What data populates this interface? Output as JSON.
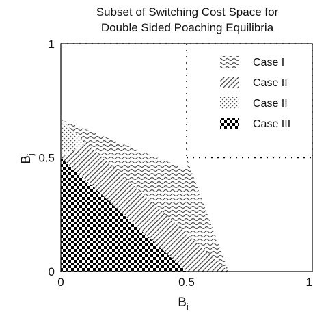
{
  "chart_data": {
    "type": "area",
    "title_lines": [
      "Subset of Switching Cost Space for",
      "Double Sided Poaching Equilibria"
    ],
    "xlabel": {
      "base": "B",
      "sub": "i"
    },
    "ylabel": {
      "base": "B",
      "sub": "j"
    },
    "xlim": [
      0,
      1
    ],
    "ylim": [
      0,
      1
    ],
    "x_ticks": [
      {
        "value": 0,
        "label": "0"
      },
      {
        "value": 0.5,
        "label": "0.5"
      },
      {
        "value": 1,
        "label": "1"
      }
    ],
    "y_ticks": [
      {
        "value": 0,
        "label": "0"
      },
      {
        "value": 0.5,
        "label": "0.5"
      },
      {
        "value": 1,
        "label": "1"
      }
    ],
    "grid": "dotted at 0.5 (upper-right quadrant)",
    "legend_position": "top-right",
    "legend": [
      {
        "label": "Case I",
        "pattern": "wave"
      },
      {
        "label": "Case II",
        "pattern": "hatch"
      },
      {
        "label": "Case II",
        "pattern": "dots"
      },
      {
        "label": "Case III",
        "pattern": "checker"
      }
    ],
    "regions": [
      {
        "name": "Case I",
        "pattern": "wave",
        "polygon": [
          [
            0,
            0.667
          ],
          [
            0.5,
            0.45
          ],
          [
            0.5,
            0.5
          ],
          [
            0.667,
            0
          ],
          [
            0.55,
            0
          ]
        ]
      },
      {
        "name": "Case II",
        "pattern": "hatch",
        "polygon": [
          [
            0,
            0.667
          ],
          [
            0.667,
            0
          ],
          [
            0.5,
            0
          ],
          [
            0,
            0.5
          ]
        ]
      },
      {
        "name": "Case II",
        "pattern": "dots",
        "polygon": [
          [
            0,
            0.667
          ],
          [
            0.1,
            0.56
          ],
          [
            0.0,
            0.5
          ]
        ]
      },
      {
        "name": "Case III",
        "pattern": "checker",
        "polygon": [
          [
            0,
            0
          ],
          [
            0.5,
            0
          ],
          [
            0,
            0.5
          ]
        ]
      }
    ]
  }
}
